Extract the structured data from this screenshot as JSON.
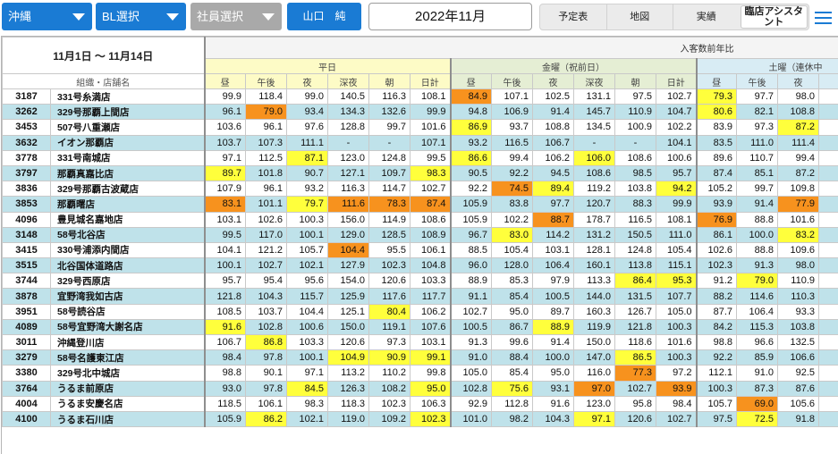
{
  "topbar": {
    "region": {
      "label": "沖縄",
      "icon": "caret-down-icon"
    },
    "bl": {
      "label": "BL選択",
      "icon": "caret-down-icon"
    },
    "staff": {
      "label": "社員選択",
      "icon": "caret-down-icon"
    },
    "user_button": "山口　純",
    "month": "2022年11月",
    "tabs": [
      {
        "label": "予定表",
        "selected": false
      },
      {
        "label": "地図",
        "selected": false
      },
      {
        "label": "実績",
        "selected": false
      },
      {
        "label": "臨店アシスタント",
        "selected": true
      }
    ],
    "menu_icon": "hamburger-menu-icon"
  },
  "colors": {
    "accent": "#1a7bd4",
    "dropdown_disabled": "#a9a9a9",
    "row_alt": "#bfe2ea",
    "highlight_yellow": "#ffff3c",
    "highlight_orange": "#f7921e",
    "weekday_header": "#fdfbc6",
    "friday_header": "#e5eed4",
    "saturday_header": "#d8ecf4"
  },
  "table": {
    "period": "11月1日 ～ 11月14日",
    "metric_title": "入客数前年比",
    "org_header": "組織・店舗名",
    "groups": [
      {
        "label": "平日",
        "columns": [
          "昼",
          "午後",
          "夜",
          "深夜",
          "朝",
          "日計"
        ]
      },
      {
        "label": "金曜（祝前日）",
        "columns": [
          "昼",
          "午後",
          "夜",
          "深夜",
          "朝",
          "日計"
        ]
      },
      {
        "label": "土曜（連休中",
        "columns": [
          "昼",
          "午後",
          "夜"
        ]
      }
    ],
    "rows": [
      {
        "code": "3187",
        "name": "331号糸満店",
        "weekday": [
          "99.9",
          "118.4",
          "99.0",
          "140.5",
          "116.3",
          "108.1"
        ],
        "friday": [
          {
            "v": "84.9",
            "hl": "orange"
          },
          "107.1",
          "102.5",
          "131.1",
          "97.5",
          "102.7"
        ],
        "saturday": [
          {
            "v": "79.3",
            "hl": "yellow"
          },
          "97.7",
          "98.0"
        ]
      },
      {
        "code": "3262",
        "name": "329号那覇上間店",
        "weekday": [
          "96.1",
          {
            "v": "79.0",
            "hl": "orange"
          },
          "93.4",
          "134.3",
          "132.6",
          "99.9"
        ],
        "friday": [
          "94.8",
          "106.9",
          "91.4",
          "145.7",
          "110.9",
          "104.7"
        ],
        "saturday": [
          {
            "v": "80.6",
            "hl": "yellow"
          },
          "82.1",
          "108.8"
        ]
      },
      {
        "code": "3453",
        "name": "507号八重瀬店",
        "weekday": [
          "103.6",
          "96.1",
          "97.6",
          "128.8",
          "99.7",
          "101.6"
        ],
        "friday": [
          {
            "v": "86.9",
            "hl": "yellow"
          },
          "93.7",
          "108.8",
          "134.5",
          "100.9",
          "102.2"
        ],
        "saturday": [
          "83.9",
          "97.3",
          {
            "v": "87.2",
            "hl": "yellow"
          }
        ]
      },
      {
        "code": "3632",
        "name": "イオン那覇店",
        "weekday": [
          "103.7",
          "107.3",
          "111.1",
          "-",
          "-",
          "107.1"
        ],
        "friday": [
          "93.2",
          "116.5",
          "106.7",
          "-",
          "-",
          "104.1"
        ],
        "saturday": [
          "83.5",
          "111.0",
          "111.4"
        ]
      },
      {
        "code": "3778",
        "name": "331号南城店",
        "weekday": [
          "97.1",
          "112.5",
          {
            "v": "87.1",
            "hl": "yellow"
          },
          "123.0",
          "124.8",
          "99.5"
        ],
        "friday": [
          {
            "v": "86.6",
            "hl": "yellow"
          },
          "99.4",
          "106.2",
          {
            "v": "106.0",
            "hl": "yellow"
          },
          "108.6",
          "100.6"
        ],
        "saturday": [
          "89.6",
          "110.7",
          "99.4"
        ]
      },
      {
        "code": "3797",
        "name": "那覇真嘉比店",
        "weekday": [
          {
            "v": "89.7",
            "hl": "yellow"
          },
          "101.8",
          "90.7",
          "127.1",
          "109.7",
          {
            "v": "98.3",
            "hl": "yellow"
          }
        ],
        "friday": [
          "90.5",
          "92.2",
          "94.5",
          "108.6",
          "98.5",
          "95.7"
        ],
        "saturday": [
          "87.4",
          "85.1",
          "87.2"
        ]
      },
      {
        "code": "3836",
        "name": "329号那覇古波蔵店",
        "weekday": [
          "107.9",
          "96.1",
          "93.2",
          "116.3",
          "114.7",
          "102.7"
        ],
        "friday": [
          "92.2",
          {
            "v": "74.5",
            "hl": "orange"
          },
          {
            "v": "89.4",
            "hl": "yellow"
          },
          "119.2",
          "103.8",
          {
            "v": "94.2",
            "hl": "yellow"
          }
        ],
        "saturday": [
          "105.2",
          "99.7",
          "109.8"
        ]
      },
      {
        "code": "3853",
        "name": "那覇曙店",
        "weekday": [
          {
            "v": "83.1",
            "hl": "orange"
          },
          "101.1",
          {
            "v": "79.7",
            "hl": "yellow"
          },
          {
            "v": "111.6",
            "hl": "orange"
          },
          {
            "v": "78.3",
            "hl": "orange"
          },
          {
            "v": "87.4",
            "hl": "orange"
          }
        ],
        "friday": [
          "105.9",
          "83.8",
          "97.7",
          "120.7",
          "88.3",
          "99.9"
        ],
        "saturday": [
          "93.9",
          "91.4",
          {
            "v": "77.9",
            "hl": "orange"
          }
        ]
      },
      {
        "code": "4096",
        "name": "豊見城名嘉地店",
        "weekday": [
          "103.1",
          "102.6",
          "100.3",
          "156.0",
          "114.9",
          "108.6"
        ],
        "friday": [
          "105.9",
          "102.2",
          {
            "v": "88.7",
            "hl": "orange"
          },
          "178.7",
          "116.5",
          "108.1"
        ],
        "saturday": [
          {
            "v": "76.9",
            "hl": "orange"
          },
          "88.8",
          "101.6"
        ]
      },
      {
        "code": "3148",
        "name": "58号北谷店",
        "weekday": [
          "99.5",
          "117.0",
          "100.1",
          "129.0",
          "128.5",
          "108.9"
        ],
        "friday": [
          "96.7",
          {
            "v": "83.0",
            "hl": "yellow"
          },
          "114.2",
          "131.2",
          "150.5",
          "111.0"
        ],
        "saturday": [
          "86.1",
          "100.0",
          {
            "v": "83.2",
            "hl": "yellow"
          }
        ]
      },
      {
        "code": "3415",
        "name": "330号浦添内間店",
        "weekday": [
          "104.1",
          "121.2",
          "105.7",
          {
            "v": "104.4",
            "hl": "orange"
          },
          "95.5",
          "106.1"
        ],
        "friday": [
          "88.5",
          "105.4",
          "103.1",
          "128.1",
          "124.8",
          "105.4"
        ],
        "saturday": [
          "102.6",
          "88.8",
          "109.6"
        ]
      },
      {
        "code": "3515",
        "name": "北谷国体道路店",
        "weekday": [
          "100.1",
          "102.7",
          "102.1",
          "127.9",
          "102.3",
          "104.8"
        ],
        "friday": [
          "96.0",
          "128.0",
          "106.4",
          "160.1",
          "113.8",
          "115.1"
        ],
        "saturday": [
          "102.3",
          "91.3",
          "98.0"
        ]
      },
      {
        "code": "3744",
        "name": "329号西原店",
        "weekday": [
          "95.7",
          "95.4",
          "95.6",
          "154.0",
          "120.6",
          "103.3"
        ],
        "friday": [
          "88.9",
          "85.3",
          "97.9",
          "113.3",
          {
            "v": "86.4",
            "hl": "yellow"
          },
          {
            "v": "95.3",
            "hl": "yellow"
          }
        ],
        "saturday": [
          "91.2",
          {
            "v": "79.0",
            "hl": "yellow"
          },
          "110.9"
        ]
      },
      {
        "code": "3878",
        "name": "宜野湾我如古店",
        "weekday": [
          "121.8",
          "104.3",
          "115.7",
          "125.9",
          "117.6",
          "117.7"
        ],
        "friday": [
          "91.1",
          "85.4",
          "100.5",
          "144.0",
          "131.5",
          "107.7"
        ],
        "saturday": [
          "88.2",
          "114.6",
          "110.3"
        ]
      },
      {
        "code": "3951",
        "name": "58号読谷店",
        "weekday": [
          "108.5",
          "103.7",
          "104.4",
          "125.1",
          {
            "v": "80.4",
            "hl": "yellow"
          },
          "106.2"
        ],
        "friday": [
          "102.7",
          "95.0",
          "89.7",
          "160.3",
          "126.7",
          "105.0"
        ],
        "saturday": [
          "87.7",
          "106.4",
          "93.3"
        ]
      },
      {
        "code": "4089",
        "name": "58号宜野湾大謝名店",
        "weekday": [
          {
            "v": "91.6",
            "hl": "yellow"
          },
          "102.8",
          "100.6",
          "150.0",
          "119.1",
          "107.6"
        ],
        "friday": [
          "100.5",
          "86.7",
          {
            "v": "88.9",
            "hl": "yellow"
          },
          "119.9",
          "121.8",
          "100.3"
        ],
        "saturday": [
          "84.2",
          "115.3",
          "103.8"
        ]
      },
      {
        "code": "3011",
        "name": "沖縄登川店",
        "weekday": [
          "106.7",
          {
            "v": "86.8",
            "hl": "yellow"
          },
          "103.3",
          "120.6",
          "97.3",
          "103.1"
        ],
        "friday": [
          "91.3",
          "99.6",
          "91.4",
          "150.0",
          "118.6",
          "101.6"
        ],
        "saturday": [
          "98.8",
          "96.6",
          "132.5"
        ]
      },
      {
        "code": "3279",
        "name": "58号名護東江店",
        "weekday": [
          "98.4",
          "97.8",
          "100.1",
          {
            "v": "104.9",
            "hl": "yellow"
          },
          {
            "v": "90.9",
            "hl": "yellow"
          },
          {
            "v": "99.1",
            "hl": "yellow"
          }
        ],
        "friday": [
          "91.0",
          "88.4",
          "100.0",
          "147.0",
          {
            "v": "86.5",
            "hl": "yellow"
          },
          "100.3"
        ],
        "saturday": [
          "92.2",
          "85.9",
          "106.6"
        ]
      },
      {
        "code": "3380",
        "name": "329号北中城店",
        "weekday": [
          "98.8",
          "90.1",
          "97.1",
          "113.2",
          "110.2",
          "99.8"
        ],
        "friday": [
          "105.0",
          "85.4",
          "95.0",
          "116.0",
          {
            "v": "77.3",
            "hl": "orange"
          },
          "97.2"
        ],
        "saturday": [
          "112.1",
          "91.0",
          "92.5"
        ]
      },
      {
        "code": "3764",
        "name": "うるま前原店",
        "weekday": [
          "93.0",
          "97.8",
          {
            "v": "84.5",
            "hl": "yellow"
          },
          "126.3",
          "108.2",
          {
            "v": "95.0",
            "hl": "yellow"
          }
        ],
        "friday": [
          "102.8",
          {
            "v": "75.6",
            "hl": "yellow"
          },
          "93.1",
          {
            "v": "97.0",
            "hl": "orange"
          },
          "102.7",
          {
            "v": "93.9",
            "hl": "orange"
          }
        ],
        "saturday": [
          "100.3",
          "87.3",
          "87.6"
        ]
      },
      {
        "code": "4004",
        "name": "うるま安慶名店",
        "weekday": [
          "118.5",
          "106.1",
          "98.3",
          "118.3",
          "102.3",
          "106.3"
        ],
        "friday": [
          "92.9",
          "112.8",
          "91.6",
          "123.0",
          "95.8",
          "98.4"
        ],
        "saturday": [
          "105.7",
          {
            "v": "69.0",
            "hl": "orange"
          },
          "105.6"
        ]
      },
      {
        "code": "4100",
        "name": "うるま石川店",
        "weekday": [
          "105.9",
          {
            "v": "86.2",
            "hl": "yellow"
          },
          "102.1",
          "119.0",
          "109.2",
          {
            "v": "102.3",
            "hl": "yellow"
          }
        ],
        "friday": [
          "101.0",
          "98.2",
          "104.3",
          {
            "v": "97.1",
            "hl": "yellow"
          },
          "120.6",
          "102.7"
        ],
        "saturday": [
          "97.5",
          {
            "v": "72.5",
            "hl": "yellow"
          },
          "91.8"
        ]
      }
    ]
  }
}
